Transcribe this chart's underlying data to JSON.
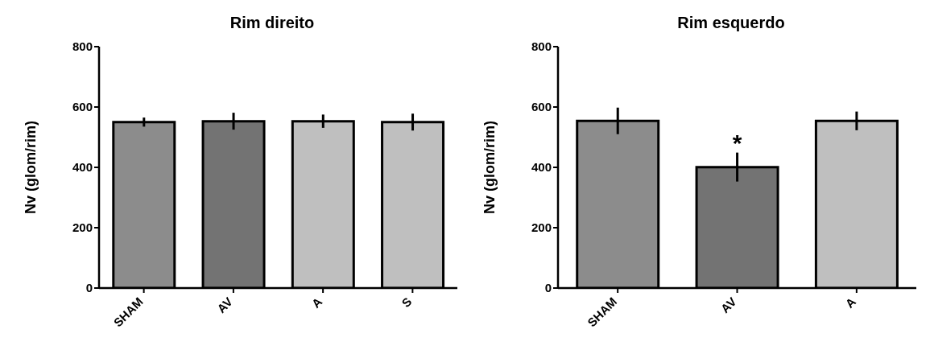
{
  "chart_data": [
    {
      "type": "bar",
      "title": "Rim direito",
      "ylabel": "Nv (glom/rim)",
      "categories": [
        "SHAM",
        "AV",
        "A",
        "S"
      ],
      "values": [
        550,
        553,
        553,
        550
      ],
      "errors": [
        15,
        28,
        22,
        28
      ],
      "colors": [
        "#8c8c8c",
        "#737373",
        "#bfbfbf",
        "#bfbfbf"
      ],
      "ylim": [
        0,
        800
      ],
      "yticks": [
        0,
        200,
        400,
        600,
        800
      ],
      "grid": false,
      "legend": false
    },
    {
      "type": "bar",
      "title": "Rim esquerdo",
      "ylabel": "Nv (glom/rim)",
      "categories": [
        "SHAM",
        "AV",
        "A"
      ],
      "values": [
        554,
        401,
        554
      ],
      "errors": [
        44,
        48,
        31
      ],
      "colors": [
        "#8c8c8c",
        "#737373",
        "#bfbfbf"
      ],
      "ylim": [
        0,
        800
      ],
      "yticks": [
        0,
        200,
        400,
        600,
        800
      ],
      "grid": false,
      "legend": false,
      "annotations": [
        {
          "text": "*",
          "x": "AV",
          "y": 449
        }
      ]
    }
  ]
}
